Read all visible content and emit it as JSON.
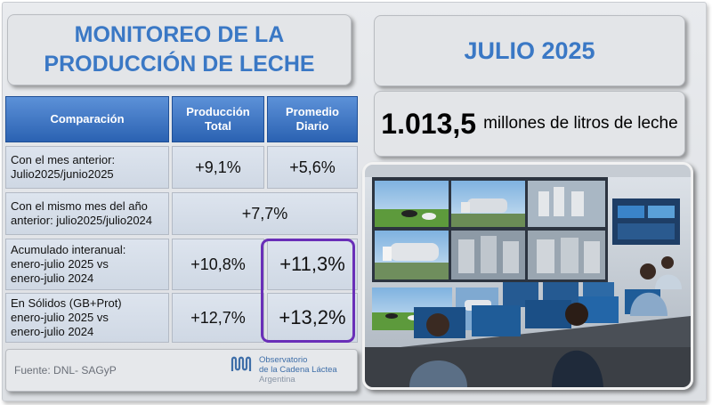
{
  "title": {
    "line1": "MONITOREO DE LA",
    "line2": "PRODUCCIÓN DE LECHE"
  },
  "month": "JULIO 2025",
  "production": {
    "value": "1.013,5",
    "unit": "millones de litros de leche"
  },
  "table": {
    "headers": {
      "comparison": "Comparación",
      "total": "Producción\nTotal",
      "daily": "Promedio\nDiario"
    },
    "rows": [
      {
        "label": "Con el mes anterior:\nJulio2025/junio2025",
        "total": "+9,1%",
        "daily": "+5,6%"
      },
      {
        "label": "Con el mismo mes del año\nanterior: julio2025/julio2024",
        "merged": "+7,7%"
      },
      {
        "label": "Acumulado interanual:\nenero-julio 2025 vs\nenero-julio 2024",
        "total": "+10,8%",
        "daily": "+11,3%"
      },
      {
        "label": "En Sólidos (GB+Prot)\nenero-julio 2025 vs\nenero-julio 2024",
        "total": "+12,7%",
        "daily": "+13,2%"
      }
    ]
  },
  "footer": {
    "source": "Fuente: DNL- SAGyP",
    "logo": {
      "line1": "Observatorio",
      "line2": "de la Cadena Láctea",
      "line3": "Argentina"
    }
  },
  "colors": {
    "accent": "#3a78c5",
    "header": "#2b62b2",
    "highlight": "#6a2fb8"
  },
  "photo": {
    "icon": "control-room-photo"
  }
}
